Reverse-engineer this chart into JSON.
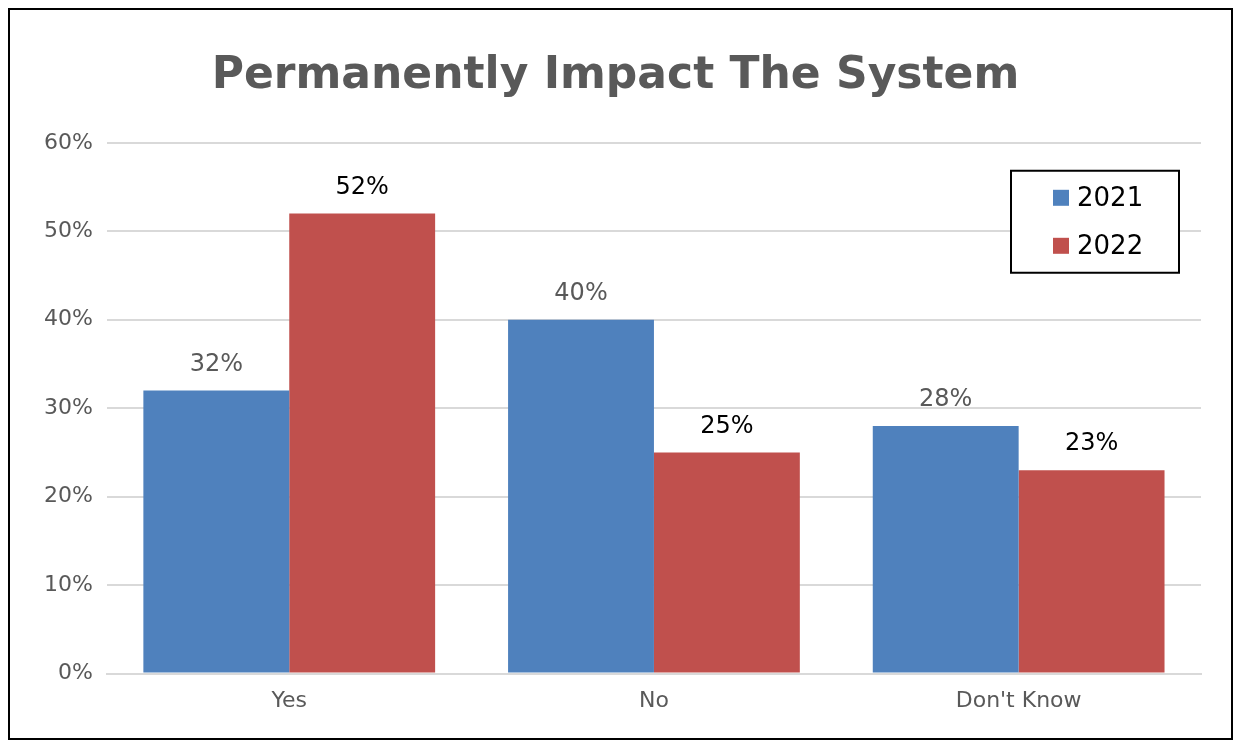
{
  "chart_data": {
    "type": "bar",
    "title": "Permanently Impact The System",
    "categories": [
      "Yes",
      "No",
      "Don't Know"
    ],
    "series": [
      {
        "name": "2021",
        "color": "#4f81bd",
        "values": [
          32,
          40,
          28
        ],
        "value_labels": [
          "32%",
          "40%",
          "28%"
        ]
      },
      {
        "name": "2022",
        "color": "#c0504d",
        "values": [
          52,
          25,
          23
        ],
        "value_labels": [
          "52%",
          "25%",
          "23%"
        ]
      }
    ],
    "ylim": [
      0,
      60
    ],
    "yticks": [
      {
        "value": 0,
        "label": "0%"
      },
      {
        "value": 10,
        "label": "10%"
      },
      {
        "value": 20,
        "label": "20%"
      },
      {
        "value": 30,
        "label": "30%"
      },
      {
        "value": 40,
        "label": "40%"
      },
      {
        "value": 50,
        "label": "50%"
      },
      {
        "value": 60,
        "label": "60%"
      }
    ],
    "grid": "y",
    "legend": "top right"
  }
}
